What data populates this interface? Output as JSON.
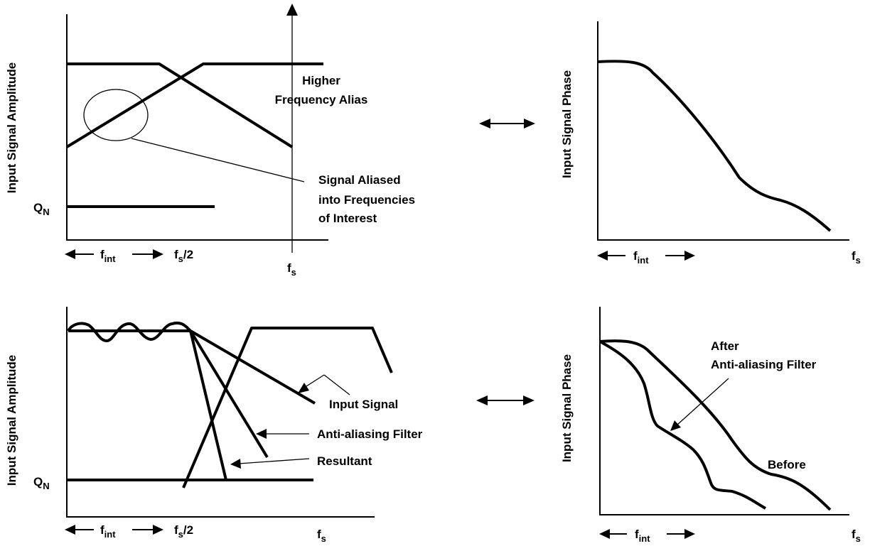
{
  "colors": {
    "ink": "#000000",
    "background": "#ffffff"
  },
  "panel_tl": {
    "ylabel": "Input Signal Amplitude",
    "qn": "Q",
    "qn_sub": "N",
    "alias_line1": "Higher",
    "alias_line2": "Frequency Alias",
    "signal_line1": "Signal Aliased",
    "signal_line2": "into Frequencies",
    "signal_line3": "of Interest",
    "fint": "f",
    "fint_sub": "int",
    "fs2": "f",
    "fs2_sub": "s",
    "fs2_tail": "/2",
    "fs": "f",
    "fs_sub": "s"
  },
  "panel_tr": {
    "ylabel": "Input Signal Phase",
    "fint": "f",
    "fint_sub": "int",
    "fs": "f",
    "fs_sub": "s"
  },
  "panel_bl": {
    "ylabel": "Input Signal Amplitude",
    "qn": "Q",
    "qn_sub": "N",
    "input_signal": "Input Signal",
    "anti_alias": "Anti-aliasing Filter",
    "resultant": "Resultant",
    "fint": "f",
    "fint_sub": "int",
    "fs2": "f",
    "fs2_sub": "s",
    "fs2_tail": "/2",
    "fs": "f",
    "fs_sub": "s"
  },
  "panel_br": {
    "ylabel": "Input Signal Phase",
    "after_line1": "After",
    "after_line2": "Anti-aliasing Filter",
    "before": "Before",
    "fint": "f",
    "fint_sub": "int",
    "fs": "f",
    "fs_sub": "s"
  }
}
